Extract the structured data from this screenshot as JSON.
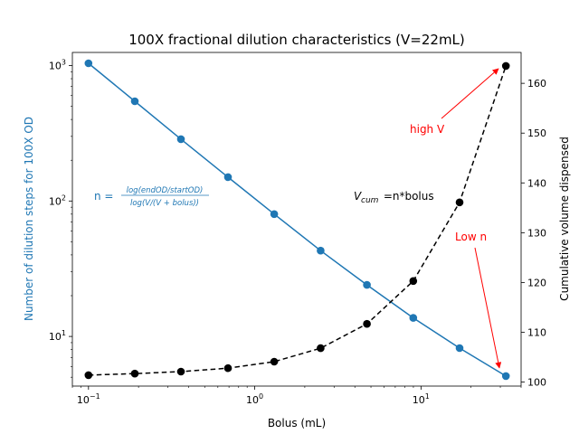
{
  "chart_data": {
    "type": "line",
    "title": "100X fractional dilution characteristics (V=22mL)",
    "xlabel": "Bolus (mL)",
    "xscale": "log",
    "xlim": [
      0.08,
      40
    ],
    "x_ticks": [
      {
        "value": 0.1,
        "base": "10",
        "exp": "−1"
      },
      {
        "value": 1,
        "base": "10",
        "exp": "0"
      },
      {
        "value": 10,
        "base": "10",
        "exp": "1"
      }
    ],
    "y_left": {
      "label": "Number of dilution steps for 100X OD",
      "scale": "log",
      "lim": [
        4.3,
        1250
      ],
      "color": "#1f77b4",
      "ticks": [
        {
          "value": 10,
          "base": "10",
          "exp": "1"
        },
        {
          "value": 100,
          "base": "10",
          "exp": "2"
        },
        {
          "value": 1000,
          "base": "10",
          "exp": "3"
        }
      ]
    },
    "y_right": {
      "label": "Cumulative volume dispensed",
      "scale": "linear",
      "lim": [
        99.2,
        166.2
      ],
      "ticks": [
        100,
        110,
        120,
        130,
        140,
        150,
        160
      ]
    },
    "x": [
      0.1,
      0.19,
      0.36,
      0.69,
      1.31,
      2.49,
      4.73,
      8.98,
      17.06,
      32.4
    ],
    "series": [
      {
        "name": "n",
        "axis": "left",
        "color": "#1f77b4",
        "style": "solid",
        "values": [
          1040,
          545,
          286,
          150,
          80,
          43,
          24,
          13.7,
          8.2,
          5.1
        ]
      },
      {
        "name": "V_cum",
        "axis": "right",
        "color": "#000000",
        "style": "dashed",
        "values": [
          101.4,
          101.7,
          102.1,
          102.8,
          104.1,
          106.8,
          111.7,
          120.3,
          136.1,
          163.5
        ]
      }
    ],
    "annotations": {
      "formula_n": {
        "prefix": "n = ",
        "numerator": "log(endOD/startOD)",
        "denominator": "log(V/(V + bolus))",
        "color": "#1f77b4"
      },
      "formula_vcum": {
        "main": "V",
        "sub": "cum",
        "rest": " =n*bolus"
      },
      "high_v": {
        "text": "high V",
        "color": "#ff0000"
      },
      "low_n": {
        "text": "Low n",
        "color": "#ff0000"
      }
    }
  }
}
